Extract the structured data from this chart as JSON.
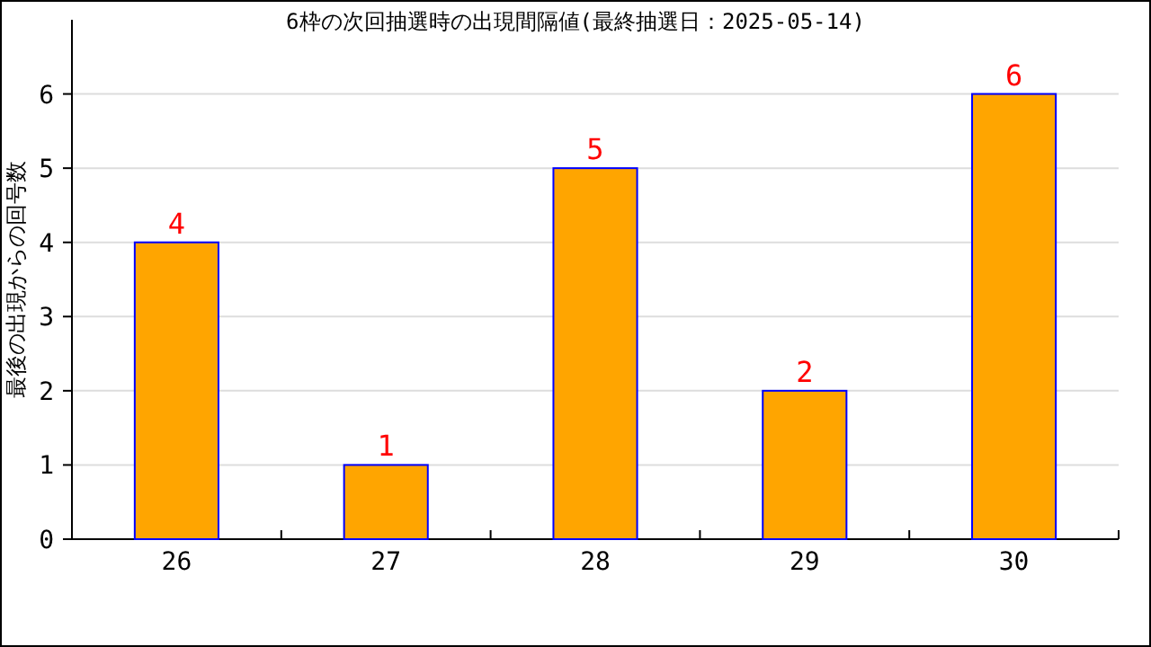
{
  "chart_data": {
    "type": "bar",
    "title": "6枠の次回抽選時の出現間隔値(最終抽選日：2025-05-14)",
    "ylabel": "最後の出現からの回号数",
    "categories": [
      "26",
      "27",
      "28",
      "29",
      "30"
    ],
    "values": [
      4,
      1,
      5,
      2,
      6
    ],
    "color": "#ffa500",
    "ylim": [
      0,
      7
    ],
    "yticks": [
      0,
      1,
      2,
      3,
      4,
      5,
      6
    ],
    "grid": "y",
    "data_labels": true
  }
}
